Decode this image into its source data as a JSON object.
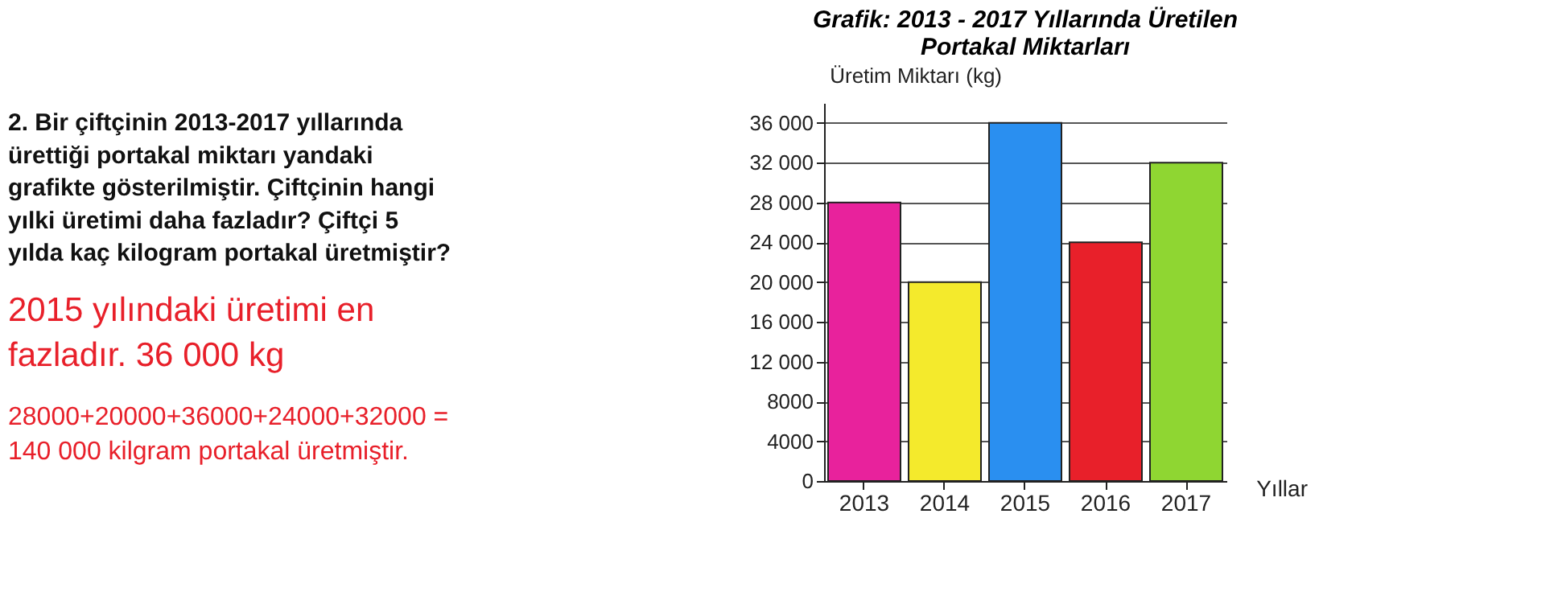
{
  "chart_data": {
    "type": "bar",
    "title": "Grafik: 2013 - 2017 Yıllarında Üretilen\nPortakal Miktarları",
    "ylabel": "Üretim Miktarı (kg)",
    "xlabel": "Yıllar",
    "categories": [
      "2013",
      "2014",
      "2015",
      "2016",
      "2017"
    ],
    "values": [
      28000,
      20000,
      36000,
      24000,
      32000
    ],
    "colors": [
      "#e8229c",
      "#f4ea2c",
      "#2a8ff0",
      "#e8202a",
      "#8fd632"
    ],
    "ylim": [
      0,
      38000
    ],
    "yticks": [
      0,
      4000,
      8000,
      {
        "value": 12000,
        "label": "12 000"
      },
      {
        "value": 16000,
        "label": "16 000"
      },
      {
        "value": 20000,
        "label": "20 000"
      },
      {
        "value": 24000,
        "label": "24 000"
      },
      {
        "value": 28000,
        "label": "28 000"
      },
      {
        "value": 32000,
        "label": "32 000"
      },
      {
        "value": 36000,
        "label": "36 000"
      }
    ],
    "grid": "y",
    "annotations": [
      "2. Bir çiftçinin 2013-2017 yıllarında\nürettiği portakal miktarı yandaki\ngrafikte gösterilmiştir. Çiftçinin hangi\nyılki üretimi daha fazladır? Çiftçi 5\nyılda kaç kilogram portakal üretmiştir?",
      "2015 yılındaki üretimi en\nfazladır. 36 000 kg",
      "28000+20000+36000+24000+32000 =\n140 000 kilgram portakal üretmiştir."
    ]
  }
}
